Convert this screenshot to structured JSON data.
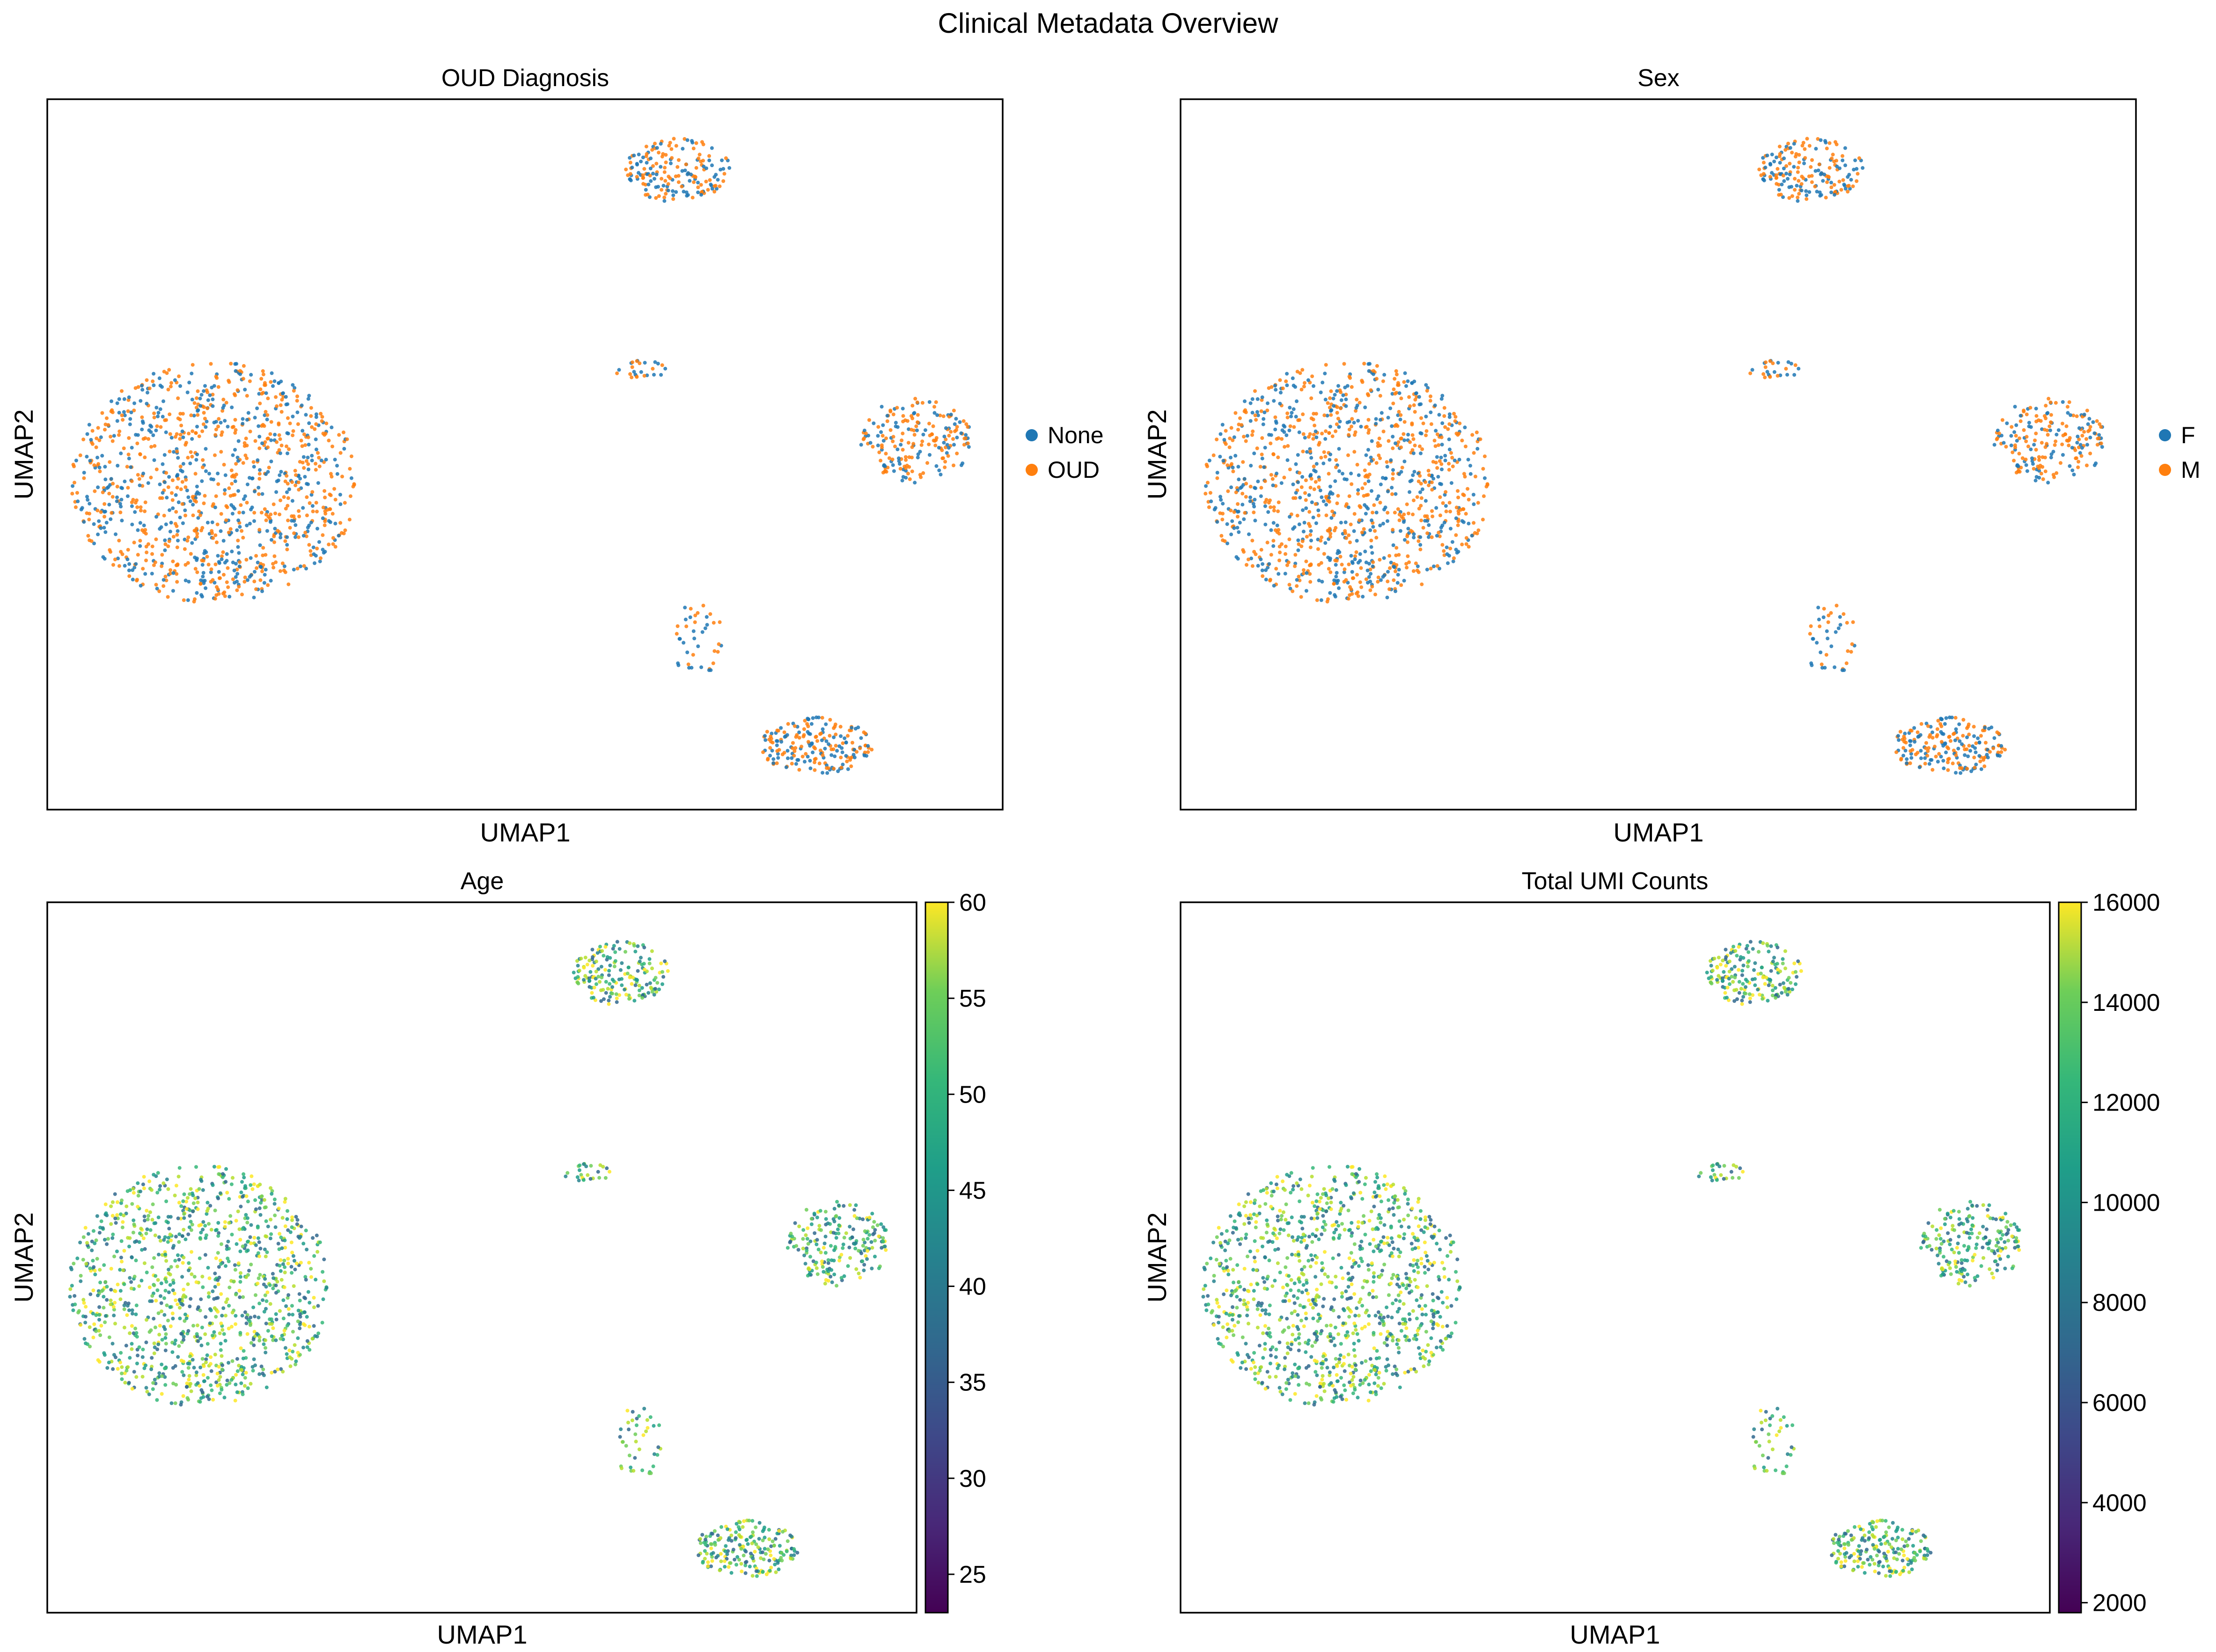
{
  "figure": {
    "suptitle": "Clinical Metadata Overview"
  },
  "chart_data": [
    {
      "type": "scatter",
      "title": "OUD Diagnosis",
      "xlabel": "UMAP1",
      "ylabel": "UMAP2",
      "color_by": "categorical",
      "legend_placement": "right-center",
      "series": [
        {
          "name": "None",
          "color": "#1f77b4"
        },
        {
          "name": "OUD",
          "color": "#ff7f0e"
        }
      ]
    },
    {
      "type": "scatter",
      "title": "Sex",
      "xlabel": "UMAP1",
      "ylabel": "UMAP2",
      "color_by": "categorical",
      "legend_placement": "right-center",
      "series": [
        {
          "name": "F",
          "color": "#1f77b4"
        },
        {
          "name": "M",
          "color": "#ff7f0e"
        }
      ]
    },
    {
      "type": "scatter",
      "title": "Age",
      "xlabel": "UMAP1",
      "ylabel": "UMAP2",
      "color_by": "continuous",
      "colormap": "viridis",
      "colorbar": {
        "min": 23,
        "max": 60,
        "ticks": [
          25,
          30,
          35,
          40,
          45,
          50,
          55,
          60
        ]
      }
    },
    {
      "type": "scatter",
      "title": "Total UMI Counts",
      "xlabel": "UMAP1",
      "ylabel": "UMAP2",
      "color_by": "continuous",
      "colormap": "viridis",
      "colorbar": {
        "min": 1800,
        "max": 16000,
        "ticks": [
          2000,
          4000,
          6000,
          8000,
          10000,
          12000,
          14000,
          16000
        ]
      }
    }
  ]
}
